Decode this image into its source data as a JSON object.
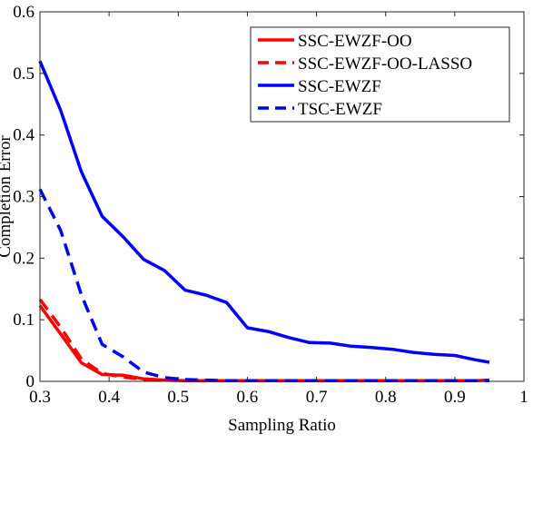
{
  "chart_data": {
    "type": "line",
    "title": "",
    "xlabel": "Sampling Ratio",
    "ylabel": "Completion Error",
    "xlim": [
      0.3,
      1
    ],
    "ylim": [
      0,
      0.6
    ],
    "xticks": [
      "0.3",
      "0.4",
      "0.5",
      "0.6",
      "0.7",
      "0.8",
      "0.9",
      "1"
    ],
    "yticks": [
      "0",
      "0.1",
      "0.2",
      "0.3",
      "0.4",
      "0.5",
      "0.6"
    ],
    "grid": false,
    "legend_position": "top-right",
    "series": [
      {
        "name": "SSC-EWZF-OO",
        "color": "#ff0000",
        "style": "solid",
        "x": [
          0.3,
          0.33,
          0.36,
          0.39,
          0.42,
          0.45,
          0.48,
          0.51,
          0.54,
          0.57,
          0.6,
          0.63,
          0.66,
          0.69,
          0.72,
          0.75,
          0.78,
          0.81,
          0.84,
          0.87,
          0.9,
          0.93,
          0.95
        ],
        "y": [
          0.123,
          0.077,
          0.03,
          0.011,
          0.01,
          0.004,
          0.002,
          0.001,
          0.001,
          0.001,
          0.001,
          0.001,
          0.001,
          0.001,
          0.001,
          0.001,
          0.001,
          0.001,
          0.001,
          0.001,
          0.001,
          0.001,
          0.002
        ]
      },
      {
        "name": "SSC-EWZF-OO-LASSO",
        "color": "#ff0000",
        "style": "dashed",
        "x": [
          0.3,
          0.33,
          0.36,
          0.39,
          0.42,
          0.45,
          0.48,
          0.51,
          0.54,
          0.57,
          0.6,
          0.63,
          0.66,
          0.69,
          0.72,
          0.75,
          0.78,
          0.81,
          0.84,
          0.87,
          0.9,
          0.93,
          0.95
        ],
        "y": [
          0.133,
          0.088,
          0.036,
          0.013,
          0.007,
          0.003,
          0.002,
          0.001,
          0.001,
          0.001,
          0.001,
          0.001,
          0.001,
          0.001,
          0.001,
          0.001,
          0.001,
          0.001,
          0.001,
          0.001,
          0.001,
          0.001,
          0.002
        ]
      },
      {
        "name": "SSC-EWZF",
        "color": "#0000ff",
        "style": "solid",
        "x": [
          0.3,
          0.33,
          0.36,
          0.39,
          0.42,
          0.45,
          0.48,
          0.51,
          0.54,
          0.57,
          0.6,
          0.63,
          0.66,
          0.69,
          0.72,
          0.75,
          0.78,
          0.81,
          0.84,
          0.87,
          0.9,
          0.93,
          0.95
        ],
        "y": [
          0.52,
          0.44,
          0.34,
          0.268,
          0.235,
          0.198,
          0.18,
          0.148,
          0.14,
          0.128,
          0.087,
          0.081,
          0.071,
          0.063,
          0.062,
          0.057,
          0.055,
          0.052,
          0.047,
          0.044,
          0.042,
          0.035,
          0.031
        ]
      },
      {
        "name": "TSC-EWZF",
        "color": "#0000ff",
        "style": "dashed",
        "x": [
          0.3,
          0.33,
          0.36,
          0.39,
          0.42,
          0.45,
          0.48,
          0.51,
          0.54,
          0.57,
          0.6,
          0.63,
          0.66,
          0.69,
          0.72,
          0.75,
          0.78,
          0.81,
          0.84,
          0.87,
          0.9,
          0.93,
          0.95
        ],
        "y": [
          0.312,
          0.245,
          0.14,
          0.06,
          0.04,
          0.015,
          0.006,
          0.003,
          0.002,
          0.001,
          0.001,
          0.001,
          0.001,
          0.001,
          0.001,
          0.001,
          0.001,
          0.001,
          0.001,
          0.001,
          0.001,
          0.001,
          0.001
        ]
      }
    ]
  }
}
